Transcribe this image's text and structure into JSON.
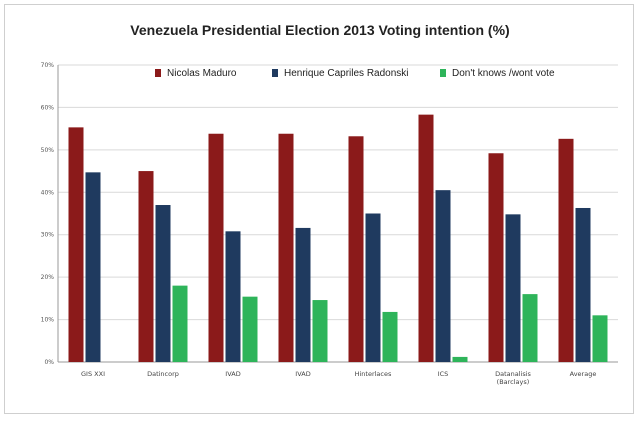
{
  "chart_data": {
    "type": "bar",
    "title": "Venezuela Presidential Election 2013 Voting intention (%)",
    "categories": [
      "GIS XXI",
      "Datincorp",
      "IVAD",
      "IVAD",
      "Hinterlaces",
      "ICS",
      "Datanalisis (Barclays)",
      "Average"
    ],
    "series": [
      {
        "name": "Nicolas Maduro",
        "values": [
          55.3,
          45.0,
          53.8,
          53.8,
          53.2,
          58.3,
          49.2,
          52.6
        ],
        "color": "#8b1a1a"
      },
      {
        "name": "Henrique Capriles Radonski",
        "values": [
          44.7,
          37.0,
          30.8,
          31.6,
          35.0,
          40.5,
          34.8,
          36.3
        ],
        "color": "#1f3a5f"
      },
      {
        "name": "Don't knows /wont vote",
        "values": [
          null,
          18.0,
          15.4,
          14.6,
          11.8,
          1.2,
          16.0,
          11.0
        ],
        "color": "#2eb45a"
      }
    ],
    "ylim": [
      0,
      70
    ],
    "yticks": [
      "0%",
      "10%",
      "20%",
      "30%",
      "40%",
      "50%",
      "60%",
      "70%"
    ],
    "grid": true,
    "legend": "top"
  }
}
